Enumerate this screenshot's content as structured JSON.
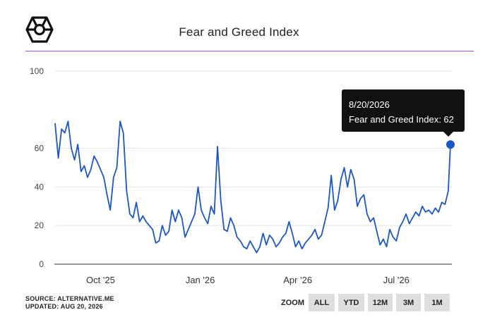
{
  "header": {
    "logo_icon": "cube-logo-icon",
    "title": "Fear and Greed Index"
  },
  "tooltip": {
    "date": "8/20/2026",
    "text": "Fear and Greed Index: 62"
  },
  "footer": {
    "source": "SOURCE: ALTERNATIVE.ME",
    "updated": "UPDATED: AUG 20, 2026",
    "zoom_label": "ZOOM",
    "zoom_buttons": [
      "ALL",
      "YTD",
      "12M",
      "3M",
      "1M"
    ]
  },
  "colors": {
    "line": "#1a56c9",
    "accent_rule": "#a24ee3",
    "tooltip_bg": "#111111",
    "button_bg": "#dedede"
  },
  "chart_data": {
    "type": "line",
    "title": "Fear and Greed Index",
    "xlabel": "",
    "ylabel": "",
    "ylim": [
      0,
      100
    ],
    "yticks": [
      0,
      20,
      40,
      60,
      100
    ],
    "x_range": [
      "2025-08-20",
      "2026-08-20"
    ],
    "xticks": [
      {
        "label": "Oct '25",
        "date": "2025-10-01"
      },
      {
        "label": "Jan '26",
        "date": "2026-01-01"
      },
      {
        "label": "Apr '26",
        "date": "2026-04-01"
      },
      {
        "label": "Jul '26",
        "date": "2026-07-01"
      }
    ],
    "grid": true,
    "legend": "none",
    "series": [
      {
        "x": [
          "2025-08-20",
          "2025-08-23",
          "2025-08-26",
          "2025-08-29",
          "2025-09-01",
          "2025-09-04",
          "2025-09-07",
          "2025-09-10",
          "2025-09-13",
          "2025-09-16",
          "2025-09-19",
          "2025-09-22",
          "2025-09-25",
          "2025-09-28",
          "2025-10-01",
          "2025-10-04",
          "2025-10-07",
          "2025-10-10",
          "2025-10-13",
          "2025-10-16",
          "2025-10-19",
          "2025-10-22",
          "2025-10-25",
          "2025-10-28",
          "2025-10-31",
          "2025-11-03",
          "2025-11-06",
          "2025-11-09",
          "2025-11-12",
          "2025-11-15",
          "2025-11-18",
          "2025-11-21",
          "2025-11-24",
          "2025-11-27",
          "2025-11-30",
          "2025-12-03",
          "2025-12-06",
          "2025-12-09",
          "2025-12-12",
          "2025-12-15",
          "2025-12-18",
          "2025-12-21",
          "2025-12-24",
          "2025-12-27",
          "2025-12-30",
          "2026-01-02",
          "2026-01-05",
          "2026-01-08",
          "2026-01-11",
          "2026-01-14",
          "2026-01-17",
          "2026-01-20",
          "2026-01-23",
          "2026-01-26",
          "2026-01-29",
          "2026-02-01",
          "2026-02-04",
          "2026-02-07",
          "2026-02-10",
          "2026-02-13",
          "2026-02-16",
          "2026-02-19",
          "2026-02-22",
          "2026-02-25",
          "2026-02-28",
          "2026-03-03",
          "2026-03-06",
          "2026-03-09",
          "2026-03-12",
          "2026-03-15",
          "2026-03-18",
          "2026-03-21",
          "2026-03-24",
          "2026-03-27",
          "2026-03-30",
          "2026-04-02",
          "2026-04-05",
          "2026-04-08",
          "2026-04-11",
          "2026-04-14",
          "2026-04-17",
          "2026-04-20",
          "2026-04-23",
          "2026-04-26",
          "2026-04-29",
          "2026-05-02",
          "2026-05-05",
          "2026-05-08",
          "2026-05-11",
          "2026-05-14",
          "2026-05-17",
          "2026-05-20",
          "2026-05-23",
          "2026-05-26",
          "2026-05-29",
          "2026-06-01",
          "2026-06-04",
          "2026-06-07",
          "2026-06-10",
          "2026-06-13",
          "2026-06-16",
          "2026-06-19",
          "2026-06-22",
          "2026-06-25",
          "2026-06-28",
          "2026-07-01",
          "2026-07-04",
          "2026-07-07",
          "2026-07-10",
          "2026-07-13",
          "2026-07-16",
          "2026-07-19",
          "2026-07-22",
          "2026-07-25",
          "2026-07-28",
          "2026-07-31",
          "2026-08-03",
          "2026-08-06",
          "2026-08-09",
          "2026-08-12",
          "2026-08-15",
          "2026-08-18",
          "2026-08-20"
        ],
        "values": [
          73,
          55,
          70,
          68,
          74,
          60,
          54,
          62,
          48,
          51,
          45,
          49,
          56,
          53,
          49,
          45,
          36,
          28,
          45,
          50,
          74,
          68,
          38,
          26,
          24,
          32,
          22,
          25,
          22,
          20,
          18,
          11,
          12,
          20,
          15,
          17,
          28,
          22,
          28,
          24,
          14,
          18,
          22,
          26,
          40,
          28,
          24,
          21,
          30,
          26,
          61,
          33,
          18,
          17,
          24,
          20,
          14,
          12,
          9,
          8,
          12,
          9,
          6,
          9,
          16,
          10,
          15,
          13,
          9,
          11,
          14,
          16,
          22,
          16,
          9,
          12,
          8,
          11,
          13,
          15,
          18,
          13,
          15,
          22,
          29,
          46,
          28,
          33,
          44,
          50,
          40,
          49,
          44,
          30,
          34,
          36,
          26,
          22,
          24,
          17,
          10,
          13,
          9,
          18,
          14,
          12,
          19,
          22,
          26,
          21,
          24,
          27,
          25,
          30,
          27,
          28,
          26,
          29,
          27,
          32,
          31,
          38,
          62
        ]
      }
    ]
  }
}
